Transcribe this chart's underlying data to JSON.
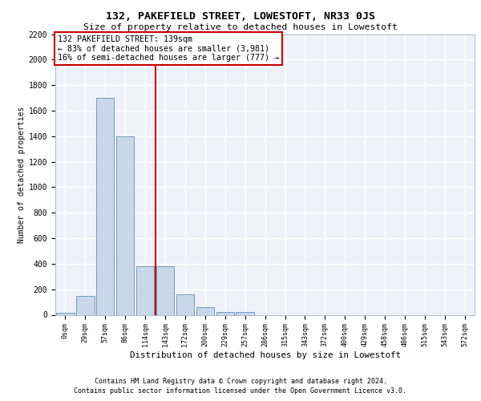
{
  "title": "132, PAKEFIELD STREET, LOWESTOFT, NR33 0JS",
  "subtitle": "Size of property relative to detached houses in Lowestoft",
  "xlabel": "Distribution of detached houses by size in Lowestoft",
  "ylabel": "Number of detached properties",
  "bar_labels": [
    "0sqm",
    "29sqm",
    "57sqm",
    "86sqm",
    "114sqm",
    "143sqm",
    "172sqm",
    "200sqm",
    "229sqm",
    "257sqm",
    "286sqm",
    "315sqm",
    "343sqm",
    "372sqm",
    "400sqm",
    "429sqm",
    "458sqm",
    "486sqm",
    "515sqm",
    "543sqm",
    "572sqm"
  ],
  "bar_values": [
    15,
    150,
    1700,
    1400,
    380,
    380,
    160,
    60,
    25,
    25,
    0,
    0,
    0,
    0,
    0,
    0,
    0,
    0,
    0,
    0,
    0
  ],
  "bar_color": "#c8d8e8",
  "bar_edgecolor": "#6090b8",
  "highlight_index": 5,
  "highlight_color": "#cc0000",
  "ylim_max": 2200,
  "yticks": [
    0,
    200,
    400,
    600,
    800,
    1000,
    1200,
    1400,
    1600,
    1800,
    2000,
    2200
  ],
  "annotation_title": "132 PAKEFIELD STREET: 139sqm",
  "annotation_line1": "← 83% of detached houses are smaller (3,981)",
  "annotation_line2": "16% of semi-detached houses are larger (777) →",
  "bg_color": "#eef2f8",
  "grid_color": "#ffffff",
  "footer1": "Contains HM Land Registry data © Crown copyright and database right 2024.",
  "footer2": "Contains public sector information licensed under the Open Government Licence v3.0."
}
